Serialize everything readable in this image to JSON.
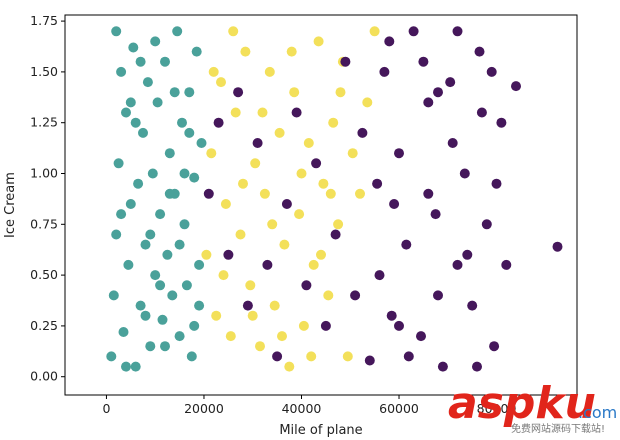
{
  "chart_data": {
    "type": "scatter",
    "title": "",
    "xlabel": "Mile of plane",
    "ylabel": "Ice Cream",
    "xlim": [
      -8500,
      96500
    ],
    "ylim": [
      -0.09,
      1.78
    ],
    "x_ticks": [
      0,
      20000,
      40000,
      60000,
      80000
    ],
    "x_tick_labels": [
      "0",
      "20000",
      "40000",
      "60000",
      "80000"
    ],
    "y_ticks": [
      0.0,
      0.25,
      0.5,
      0.75,
      1.0,
      1.25,
      1.5,
      1.75
    ],
    "y_tick_labels": [
      "0.00",
      "0.25",
      "0.50",
      "0.75",
      "1.00",
      "1.25",
      "1.50",
      "1.75"
    ],
    "grid": false,
    "legend": "none",
    "series": [
      {
        "color": "#4aa19a",
        "points": [
          [
            1000,
            0.1
          ],
          [
            1500,
            0.4
          ],
          [
            2000,
            0.7
          ],
          [
            2500,
            1.05
          ],
          [
            3000,
            1.5
          ],
          [
            3500,
            0.22
          ],
          [
            4000,
            1.3
          ],
          [
            4500,
            0.55
          ],
          [
            5000,
            0.85
          ],
          [
            5500,
            1.62
          ],
          [
            6000,
            0.05
          ],
          [
            6500,
            0.95
          ],
          [
            7000,
            0.35
          ],
          [
            7500,
            1.2
          ],
          [
            8000,
            0.65
          ],
          [
            8500,
            1.45
          ],
          [
            9000,
            0.15
          ],
          [
            9500,
            1.0
          ],
          [
            10000,
            0.5
          ],
          [
            10500,
            1.35
          ],
          [
            11000,
            0.8
          ],
          [
            11500,
            0.28
          ],
          [
            12000,
            1.55
          ],
          [
            12500,
            0.6
          ],
          [
            13000,
            1.1
          ],
          [
            13500,
            0.4
          ],
          [
            14000,
            0.9
          ],
          [
            14500,
            1.7
          ],
          [
            15000,
            0.2
          ],
          [
            15500,
            1.25
          ],
          [
            16000,
            0.75
          ],
          [
            16500,
            0.45
          ],
          [
            17000,
            1.4
          ],
          [
            17500,
            0.1
          ],
          [
            18000,
            0.98
          ],
          [
            18500,
            1.6
          ],
          [
            19000,
            0.55
          ],
          [
            19500,
            1.15
          ],
          [
            2000,
            1.7
          ],
          [
            4000,
            0.05
          ],
          [
            6000,
            1.25
          ],
          [
            8000,
            0.3
          ],
          [
            10000,
            1.65
          ],
          [
            12000,
            0.15
          ],
          [
            14000,
            1.4
          ],
          [
            16000,
            1.0
          ],
          [
            18000,
            0.25
          ],
          [
            3000,
            0.8
          ],
          [
            7000,
            1.55
          ],
          [
            11000,
            0.45
          ],
          [
            15000,
            0.65
          ],
          [
            17000,
            1.2
          ],
          [
            5000,
            1.35
          ],
          [
            9000,
            0.7
          ],
          [
            13000,
            0.9
          ],
          [
            19000,
            0.35
          ]
        ]
      },
      {
        "color": "#f3e05a",
        "points": [
          [
            20500,
            0.6
          ],
          [
            21500,
            1.1
          ],
          [
            22500,
            0.3
          ],
          [
            23500,
            1.45
          ],
          [
            24500,
            0.85
          ],
          [
            25500,
            0.2
          ],
          [
            26500,
            1.3
          ],
          [
            27500,
            0.7
          ],
          [
            28500,
            1.6
          ],
          [
            29500,
            0.45
          ],
          [
            30500,
            1.05
          ],
          [
            31500,
            0.15
          ],
          [
            32500,
            0.9
          ],
          [
            33500,
            1.5
          ],
          [
            34500,
            0.35
          ],
          [
            35500,
            1.2
          ],
          [
            36500,
            0.65
          ],
          [
            37500,
            0.05
          ],
          [
            38500,
            1.4
          ],
          [
            39500,
            0.8
          ],
          [
            40500,
            0.25
          ],
          [
            41500,
            1.15
          ],
          [
            42500,
            0.55
          ],
          [
            43500,
            1.65
          ],
          [
            44500,
            0.95
          ],
          [
            45500,
            0.4
          ],
          [
            46500,
            1.25
          ],
          [
            47500,
            0.75
          ],
          [
            48500,
            1.55
          ],
          [
            49500,
            0.1
          ],
          [
            24000,
            0.5
          ],
          [
            28000,
            0.95
          ],
          [
            32000,
            1.3
          ],
          [
            36000,
            0.2
          ],
          [
            40000,
            1.0
          ],
          [
            44000,
            0.6
          ],
          [
            48000,
            1.4
          ],
          [
            26000,
            1.7
          ],
          [
            34000,
            0.75
          ],
          [
            42000,
            0.1
          ],
          [
            30000,
            0.3
          ],
          [
            38000,
            1.6
          ],
          [
            46000,
            0.9
          ],
          [
            22000,
            1.5
          ],
          [
            50500,
            1.1
          ],
          [
            52000,
            0.9
          ],
          [
            53500,
            1.35
          ],
          [
            55000,
            1.7
          ]
        ]
      },
      {
        "color": "#45175b",
        "points": [
          [
            21000,
            0.9
          ],
          [
            23000,
            1.25
          ],
          [
            25000,
            0.6
          ],
          [
            27000,
            1.4
          ],
          [
            29000,
            0.35
          ],
          [
            31000,
            1.15
          ],
          [
            33000,
            0.55
          ],
          [
            35000,
            0.1
          ],
          [
            37000,
            0.85
          ],
          [
            39000,
            1.3
          ],
          [
            41000,
            0.45
          ],
          [
            43000,
            1.05
          ],
          [
            45000,
            0.25
          ],
          [
            47000,
            0.7
          ],
          [
            49000,
            1.55
          ],
          [
            51000,
            0.4
          ],
          [
            52500,
            1.2
          ],
          [
            54000,
            0.08
          ],
          [
            55500,
            0.95
          ],
          [
            57000,
            1.5
          ],
          [
            58500,
            0.3
          ],
          [
            60000,
            1.1
          ],
          [
            61500,
            0.65
          ],
          [
            63000,
            1.7
          ],
          [
            64500,
            0.2
          ],
          [
            66000,
            1.35
          ],
          [
            67500,
            0.8
          ],
          [
            69000,
            0.05
          ],
          [
            70500,
            1.45
          ],
          [
            72000,
            0.55
          ],
          [
            73500,
            1.0
          ],
          [
            75000,
            0.35
          ],
          [
            76500,
            1.6
          ],
          [
            78000,
            0.75
          ],
          [
            79500,
            0.15
          ],
          [
            81000,
            1.25
          ],
          [
            56000,
            0.5
          ],
          [
            59000,
            0.85
          ],
          [
            62000,
            0.1
          ],
          [
            65000,
            1.55
          ],
          [
            68000,
            0.4
          ],
          [
            71000,
            1.15
          ],
          [
            74000,
            0.6
          ],
          [
            77000,
            1.3
          ],
          [
            80000,
            0.95
          ],
          [
            58000,
            1.65
          ],
          [
            66000,
            0.9
          ],
          [
            72000,
            1.7
          ],
          [
            60000,
            0.25
          ],
          [
            68000,
            1.4
          ],
          [
            76000,
            0.05
          ],
          [
            82000,
            0.55
          ],
          [
            79000,
            1.5
          ],
          [
            84000,
            1.43
          ],
          [
            92500,
            0.64
          ]
        ]
      }
    ]
  },
  "watermark": {
    "main": "aspku",
    "sub": ".com",
    "tagline": "免费网站源码下载站!",
    "color_main": "#e1251b",
    "color_accent": "#2a79c7"
  }
}
